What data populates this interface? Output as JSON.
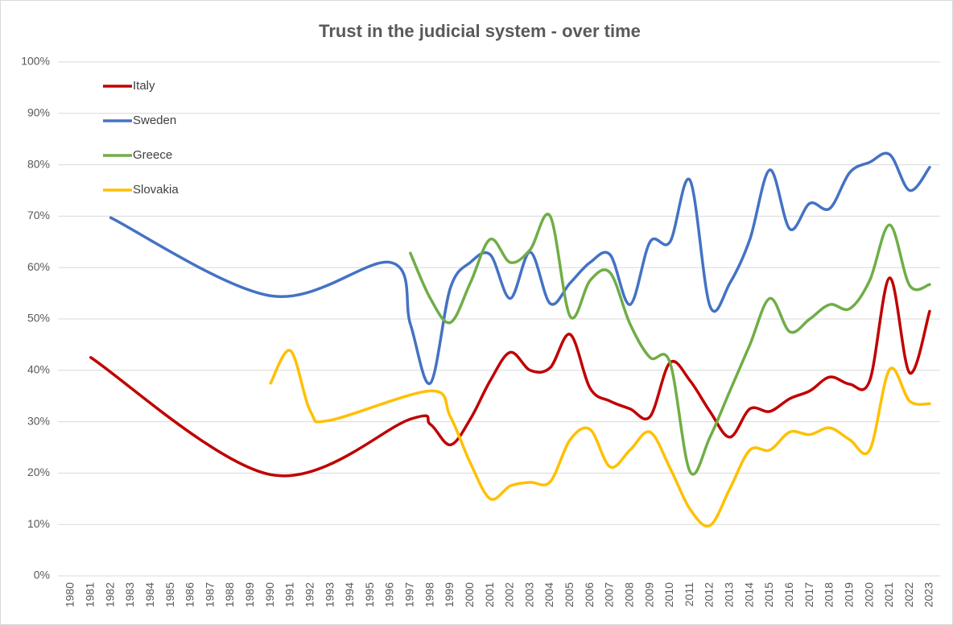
{
  "chart_data": {
    "type": "line",
    "title": "Trust in the judicial system - over time",
    "xlim": [
      1980,
      2023
    ],
    "xticks": [
      1980,
      1981,
      1982,
      1983,
      1984,
      1985,
      1986,
      1987,
      1988,
      1989,
      1990,
      1991,
      1992,
      1993,
      1994,
      1995,
      1996,
      1997,
      1998,
      1999,
      2000,
      2001,
      2002,
      2003,
      2004,
      2005,
      2006,
      2007,
      2008,
      2009,
      2010,
      2011,
      2012,
      2013,
      2014,
      2015,
      2016,
      2017,
      2018,
      2019,
      2020,
      2021,
      2022,
      2023
    ],
    "ylim": [
      0,
      100
    ],
    "yticks": [
      {
        "value": 0,
        "label": "0%"
      },
      {
        "value": 10,
        "label": "10%"
      },
      {
        "value": 20,
        "label": "20%"
      },
      {
        "value": 30,
        "label": "30%"
      },
      {
        "value": 40,
        "label": "40%"
      },
      {
        "value": 50,
        "label": "50%"
      },
      {
        "value": 60,
        "label": "60%"
      },
      {
        "value": 70,
        "label": "70%"
      },
      {
        "value": 80,
        "label": "80%"
      },
      {
        "value": 90,
        "label": "90%"
      },
      {
        "value": 100,
        "label": "100%"
      }
    ],
    "grid": true,
    "legend": "top-left",
    "series": [
      {
        "name": "Italy",
        "color": "#c00000",
        "x": [
          1981,
          1990,
          1997,
          1998,
          1999,
          2000,
          2001,
          2002,
          2003,
          2004,
          2005,
          2006,
          2007,
          2008,
          2009,
          2010,
          2011,
          2012,
          2013,
          2014,
          2015,
          2016,
          2017,
          2018,
          2019,
          2020,
          2021,
          2022,
          2023
        ],
        "values": [
          42.5,
          19.7,
          30.5,
          29.5,
          25.5,
          30.5,
          38,
          43.5,
          40,
          40.5,
          47,
          36.5,
          34,
          32.5,
          31,
          41.5,
          38,
          32,
          27,
          32.5,
          32,
          34.5,
          36,
          38.7,
          37.3,
          38,
          58,
          39.5,
          51.5
        ]
      },
      {
        "name": "Sweden",
        "color": "#4472c4",
        "x": [
          1982,
          1990,
          1996,
          1997,
          1998,
          1999,
          2000,
          2001,
          2002,
          2003,
          2004,
          2005,
          2006,
          2007,
          2008,
          2009,
          2010,
          2011,
          2012,
          2013,
          2014,
          2015,
          2016,
          2017,
          2018,
          2019,
          2020,
          2021,
          2022,
          2023
        ],
        "values": [
          69.7,
          54.5,
          61,
          49,
          37.5,
          56,
          61,
          62.5,
          54,
          63,
          53,
          57,
          61,
          62.5,
          52.8,
          65,
          65,
          77,
          52.5,
          57,
          65.5,
          79,
          67.5,
          72.5,
          71.5,
          78.5,
          80.5,
          82,
          75,
          79.5
        ]
      },
      {
        "name": "Greece",
        "color": "#70ad47",
        "x": [
          1997,
          1998,
          1999,
          2000,
          2001,
          2002,
          2003,
          2004,
          2005,
          2006,
          2007,
          2008,
          2009,
          2010,
          2011,
          2012,
          2013,
          2014,
          2015,
          2016,
          2017,
          2018,
          2019,
          2020,
          2021,
          2022,
          2023
        ],
        "values": [
          62.8,
          54,
          49.3,
          57,
          65.5,
          61,
          63.5,
          70,
          50.5,
          57.5,
          59,
          49,
          42.5,
          41.5,
          20.3,
          27,
          36,
          45,
          54,
          47.5,
          50,
          52.8,
          52,
          57.5,
          68.3,
          56.5,
          56.7
        ]
      },
      {
        "name": "Slovakia",
        "color": "#ffc000",
        "x": [
          1990,
          1991,
          1992,
          1993,
          1998,
          1999,
          2000,
          2001,
          2002,
          2003,
          2004,
          2005,
          2006,
          2007,
          2008,
          2009,
          2010,
          2011,
          2012,
          2013,
          2014,
          2015,
          2016,
          2017,
          2018,
          2019,
          2020,
          2021,
          2022,
          2023
        ],
        "values": [
          37.5,
          43.8,
          32,
          30.3,
          36,
          31,
          22,
          15,
          17.5,
          18.2,
          18.3,
          26.5,
          28.5,
          21.2,
          24.5,
          28,
          21,
          13,
          9.8,
          17,
          24.5,
          24.5,
          28,
          27.5,
          28.8,
          26.5,
          24.5,
          40.2,
          34,
          33.5
        ]
      }
    ]
  }
}
